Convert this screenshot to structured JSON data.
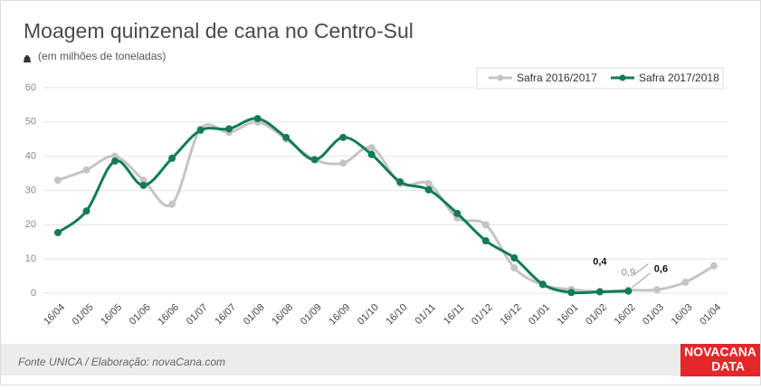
{
  "chart_data": {
    "type": "line",
    "title": "Moagem quinzenal de cana no Centro-Sul",
    "subtitle": "(em milhões de toneladas)",
    "source": "Fonte UNICA / Elaboração: novaCana.com",
    "logo": [
      "NOVACANA",
      "DATA"
    ],
    "categories": [
      "16/04",
      "01/05",
      "16/05",
      "01/06",
      "16/06",
      "01/07",
      "16/07",
      "01/08",
      "16/08",
      "01/09",
      "16/09",
      "01/10",
      "16/10",
      "01/11",
      "16/11",
      "01/12",
      "16/12",
      "01/01",
      "16/01",
      "01/02",
      "16/02",
      "01/03",
      "16/03",
      "01/04"
    ],
    "series": [
      {
        "name": "Safra 2016/2017",
        "color": "#c4c4c4",
        "values": [
          33,
          36,
          40,
          33,
          26,
          48,
          47,
          50,
          45,
          39,
          38,
          42.5,
          32,
          32,
          22,
          20,
          7.4,
          2.4,
          1.1,
          0.5,
          0.9,
          1,
          3.2,
          8
        ],
        "value_labels": [
          null,
          null,
          null,
          null,
          null,
          null,
          null,
          null,
          null,
          null,
          null,
          null,
          null,
          null,
          null,
          null,
          null,
          null,
          null,
          null,
          "0,9",
          null,
          null,
          null
        ]
      },
      {
        "name": "Safra 2017/2018",
        "color": "#137a5b",
        "values": [
          17.7,
          24,
          38.6,
          31.5,
          39.4,
          47.6,
          48,
          51,
          45.5,
          39,
          45.5,
          40.5,
          32.5,
          30.2,
          23.3,
          15.3,
          10.3,
          2.6,
          0.2,
          0.4,
          0.6,
          null,
          null,
          null
        ],
        "value_labels": [
          null,
          null,
          null,
          null,
          null,
          null,
          null,
          null,
          null,
          null,
          null,
          null,
          null,
          null,
          null,
          null,
          null,
          null,
          null,
          "0,4",
          "0,6",
          null,
          null,
          null
        ]
      }
    ],
    "ylim": [
      0,
      60
    ],
    "yticks": [
      0,
      10,
      20,
      30,
      40,
      50,
      60
    ],
    "grid": true,
    "legend": "top-right"
  }
}
